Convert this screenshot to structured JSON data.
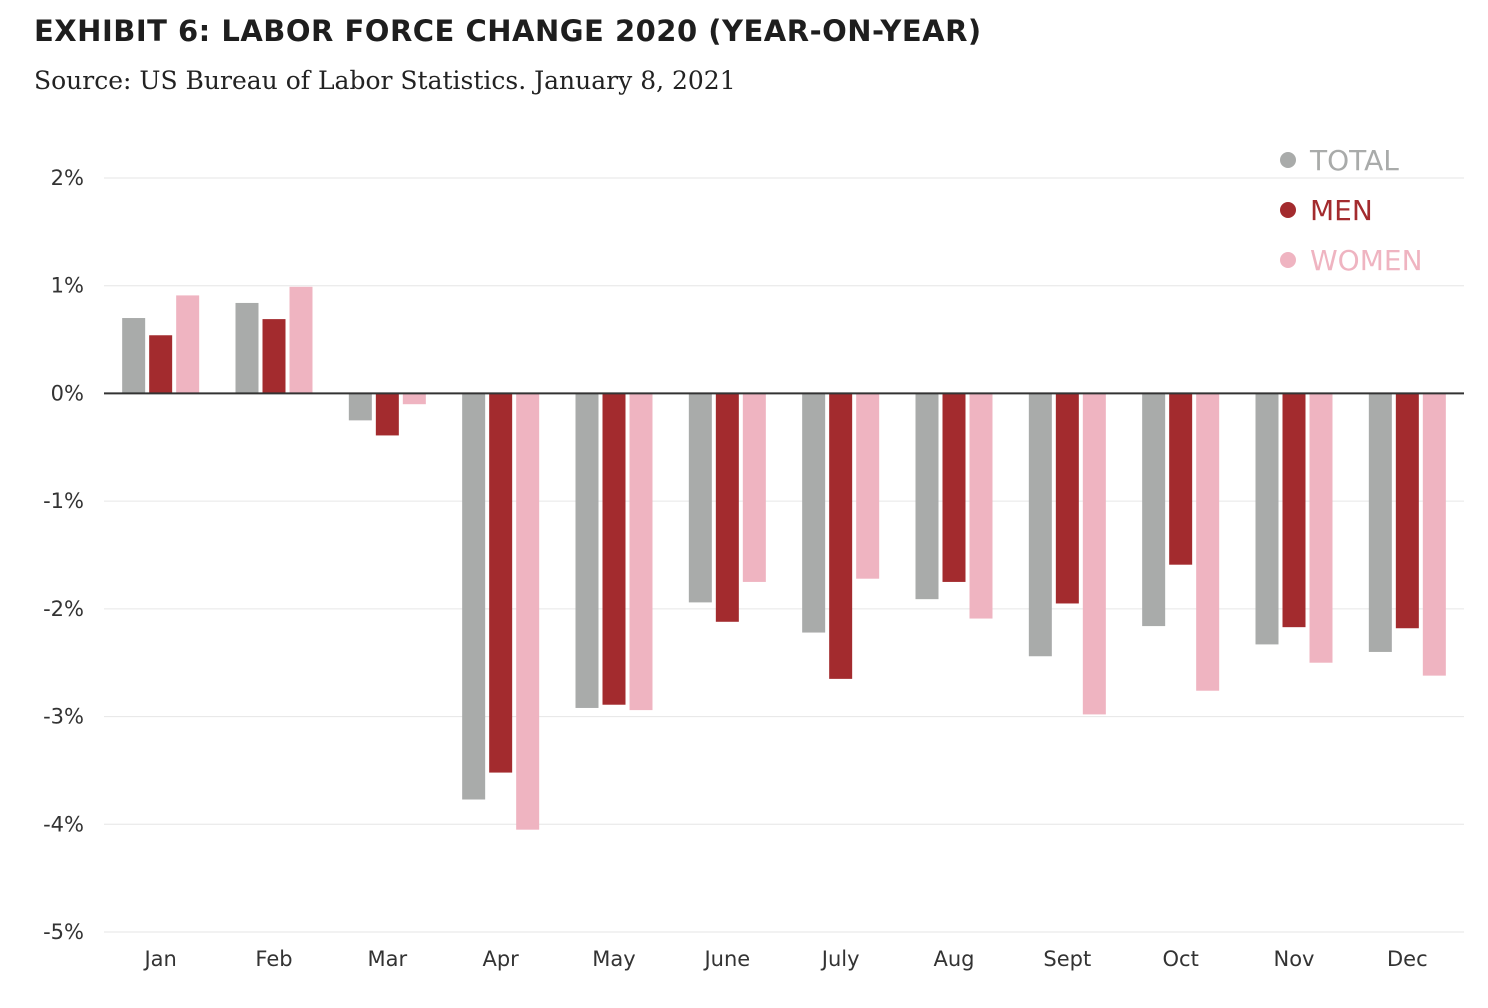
{
  "title": "EXHIBIT 6: LABOR FORCE CHANGE 2020 (YEAR-ON-YEAR)",
  "subtitle": "Source: US Bureau of Labor Statistics. January 8, 2021",
  "chart_data": {
    "type": "bar",
    "categories": [
      "Jan",
      "Feb",
      "Mar",
      "Apr",
      "May",
      "June",
      "July",
      "Aug",
      "Sept",
      "Oct",
      "Nov",
      "Dec"
    ],
    "series": [
      {
        "name": "TOTAL",
        "color": "#a9abaa",
        "values": [
          0.7,
          0.84,
          -0.25,
          -3.77,
          -2.92,
          -1.94,
          -2.22,
          -1.91,
          -2.44,
          -2.16,
          -2.33,
          -2.4
        ]
      },
      {
        "name": "MEN",
        "color": "#a32b2e",
        "values": [
          0.54,
          0.69,
          -0.39,
          -3.52,
          -2.89,
          -2.12,
          -2.65,
          -1.75,
          -1.95,
          -1.59,
          -2.17,
          -2.18
        ]
      },
      {
        "name": "WOMEN",
        "color": "#efb4c1",
        "values": [
          0.91,
          0.99,
          -0.1,
          -4.05,
          -2.94,
          -1.75,
          -1.72,
          -2.09,
          -2.98,
          -2.76,
          -2.5,
          -2.62
        ]
      }
    ],
    "yticks": [
      "2%",
      "1%",
      "0%",
      "-1%",
      "-2%",
      "-3%",
      "-4%",
      "-5%"
    ],
    "ylim": [
      -5,
      2
    ],
    "ylabel": "",
    "xlabel": "",
    "grid": true,
    "legend_position": "top-right"
  }
}
